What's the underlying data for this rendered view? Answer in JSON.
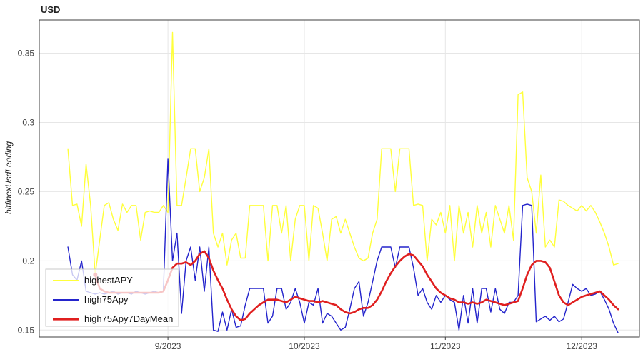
{
  "chart_data": {
    "type": "line",
    "title": "USD",
    "ylabel": "bitfinexUsdLending",
    "xlabel": "",
    "grid": true,
    "legend_position": "bottom-left",
    "ylim": [
      0.145,
      0.374
    ],
    "yticks": [
      0.15,
      0.2,
      0.25,
      0.3,
      0.35
    ],
    "xticks": [
      {
        "label": "9/2023",
        "date": "2023-09-01"
      },
      {
        "label": "10/2023",
        "date": "2023-10-01"
      },
      {
        "label": "11/2023",
        "date": "2023-11-01"
      },
      {
        "label": "12/2023",
        "date": "2023-12-01"
      }
    ],
    "grid_color": "#e6e6e6",
    "frame_color": "#3f3f3f",
    "tick_color": "#444444",
    "dates": [
      "2023-08-10",
      "2023-08-11",
      "2023-08-12",
      "2023-08-13",
      "2023-08-14",
      "2023-08-15",
      "2023-08-16",
      "2023-08-17",
      "2023-08-18",
      "2023-08-19",
      "2023-08-20",
      "2023-08-21",
      "2023-08-22",
      "2023-08-23",
      "2023-08-24",
      "2023-08-25",
      "2023-08-26",
      "2023-08-27",
      "2023-08-28",
      "2023-08-29",
      "2023-08-30",
      "2023-08-31",
      "2023-09-01",
      "2023-09-02",
      "2023-09-03",
      "2023-09-04",
      "2023-09-05",
      "2023-09-06",
      "2023-09-07",
      "2023-09-08",
      "2023-09-09",
      "2023-09-10",
      "2023-09-11",
      "2023-09-12",
      "2023-09-13",
      "2023-09-14",
      "2023-09-15",
      "2023-09-16",
      "2023-09-17",
      "2023-09-18",
      "2023-09-19",
      "2023-09-20",
      "2023-09-21",
      "2023-09-22",
      "2023-09-23",
      "2023-09-24",
      "2023-09-25",
      "2023-09-26",
      "2023-09-27",
      "2023-09-28",
      "2023-09-29",
      "2023-09-30",
      "2023-10-01",
      "2023-10-02",
      "2023-10-03",
      "2023-10-04",
      "2023-10-05",
      "2023-10-06",
      "2023-10-07",
      "2023-10-08",
      "2023-10-09",
      "2023-10-10",
      "2023-10-11",
      "2023-10-12",
      "2023-10-13",
      "2023-10-14",
      "2023-10-15",
      "2023-10-16",
      "2023-10-17",
      "2023-10-18",
      "2023-10-19",
      "2023-10-20",
      "2023-10-21",
      "2023-10-22",
      "2023-10-23",
      "2023-10-24",
      "2023-10-25",
      "2023-10-26",
      "2023-10-27",
      "2023-10-28",
      "2023-10-29",
      "2023-10-30",
      "2023-10-31",
      "2023-11-01",
      "2023-11-02",
      "2023-11-03",
      "2023-11-04",
      "2023-11-05",
      "2023-11-06",
      "2023-11-07",
      "2023-11-08",
      "2023-11-09",
      "2023-11-10",
      "2023-11-11",
      "2023-11-12",
      "2023-11-13",
      "2023-11-14",
      "2023-11-15",
      "2023-11-16",
      "2023-11-17",
      "2023-11-18",
      "2023-11-19",
      "2023-11-20",
      "2023-11-21",
      "2023-11-22",
      "2023-11-23",
      "2023-11-24",
      "2023-11-25",
      "2023-11-26",
      "2023-11-27",
      "2023-11-28",
      "2023-11-29",
      "2023-11-30",
      "2023-12-01",
      "2023-12-02",
      "2023-12-03",
      "2023-12-04",
      "2023-12-05",
      "2023-12-06",
      "2023-12-07",
      "2023-12-08",
      "2023-12-09"
    ],
    "series": [
      {
        "name": "highestAPY",
        "color": "#ffff3b",
        "width": 1.4,
        "values": [
          0.281,
          0.24,
          0.241,
          0.225,
          0.27,
          0.24,
          0.19,
          0.215,
          0.24,
          0.242,
          0.23,
          0.222,
          0.241,
          0.235,
          0.24,
          0.24,
          0.215,
          0.235,
          0.236,
          0.235,
          0.235,
          0.24,
          0.235,
          0.365,
          0.24,
          0.24,
          0.26,
          0.281,
          0.281,
          0.25,
          0.26,
          0.281,
          0.22,
          0.21,
          0.22,
          0.197,
          0.215,
          0.22,
          0.202,
          0.202,
          0.24,
          0.24,
          0.24,
          0.24,
          0.2,
          0.24,
          0.24,
          0.22,
          0.24,
          0.2,
          0.23,
          0.24,
          0.24,
          0.2,
          0.24,
          0.238,
          0.22,
          0.2,
          0.23,
          0.232,
          0.22,
          0.23,
          0.22,
          0.21,
          0.202,
          0.2,
          0.202,
          0.22,
          0.23,
          0.281,
          0.281,
          0.281,
          0.25,
          0.281,
          0.281,
          0.281,
          0.24,
          0.241,
          0.24,
          0.2,
          0.23,
          0.226,
          0.235,
          0.22,
          0.24,
          0.2,
          0.24,
          0.22,
          0.235,
          0.21,
          0.24,
          0.22,
          0.235,
          0.21,
          0.24,
          0.23,
          0.22,
          0.24,
          0.215,
          0.32,
          0.322,
          0.26,
          0.25,
          0.22,
          0.262,
          0.21,
          0.215,
          0.21,
          0.244,
          0.243,
          0.24,
          0.238,
          0.236,
          0.24,
          0.236,
          0.24,
          0.235,
          0.228,
          0.22,
          0.21,
          0.197,
          0.198
        ]
      },
      {
        "name": "high75Apy",
        "color": "#2424cc",
        "width": 1.4,
        "values": [
          0.21,
          0.19,
          0.186,
          0.2,
          0.178,
          0.177,
          0.176,
          0.177,
          0.176,
          0.177,
          0.178,
          0.176,
          0.177,
          0.177,
          0.176,
          0.178,
          0.177,
          0.176,
          0.177,
          0.178,
          0.177,
          0.178,
          0.274,
          0.2,
          0.22,
          0.162,
          0.2,
          0.21,
          0.186,
          0.21,
          0.178,
          0.21,
          0.15,
          0.149,
          0.163,
          0.15,
          0.165,
          0.152,
          0.153,
          0.168,
          0.18,
          0.18,
          0.18,
          0.18,
          0.155,
          0.16,
          0.18,
          0.18,
          0.165,
          0.17,
          0.18,
          0.17,
          0.155,
          0.17,
          0.168,
          0.18,
          0.155,
          0.162,
          0.16,
          0.155,
          0.15,
          0.152,
          0.165,
          0.18,
          0.185,
          0.16,
          0.17,
          0.185,
          0.2,
          0.21,
          0.21,
          0.21,
          0.195,
          0.21,
          0.21,
          0.21,
          0.195,
          0.175,
          0.18,
          0.17,
          0.165,
          0.175,
          0.17,
          0.175,
          0.172,
          0.17,
          0.15,
          0.175,
          0.155,
          0.18,
          0.155,
          0.18,
          0.18,
          0.163,
          0.18,
          0.165,
          0.162,
          0.17,
          0.17,
          0.175,
          0.24,
          0.241,
          0.24,
          0.156,
          0.158,
          0.16,
          0.157,
          0.16,
          0.156,
          0.158,
          0.17,
          0.183,
          0.18,
          0.178,
          0.18,
          0.175,
          0.176,
          0.178,
          0.172,
          0.165,
          0.155,
          0.148
        ]
      },
      {
        "name": "high75Apy7DayMean",
        "color": "#e01f1f",
        "width": 2.6,
        "start_marker": true,
        "values": [
          null,
          null,
          null,
          null,
          null,
          null,
          0.19,
          0.18,
          0.178,
          0.177,
          0.177,
          0.177,
          0.177,
          0.177,
          0.177,
          0.177,
          0.177,
          0.177,
          0.177,
          0.177,
          0.177,
          0.178,
          0.186,
          0.195,
          0.198,
          0.198,
          0.199,
          0.197,
          0.2,
          0.205,
          0.207,
          0.202,
          0.193,
          0.186,
          0.18,
          0.172,
          0.165,
          0.16,
          0.157,
          0.158,
          0.162,
          0.165,
          0.168,
          0.17,
          0.172,
          0.172,
          0.172,
          0.171,
          0.17,
          0.172,
          0.174,
          0.173,
          0.172,
          0.171,
          0.171,
          0.17,
          0.171,
          0.17,
          0.169,
          0.168,
          0.165,
          0.163,
          0.162,
          0.163,
          0.165,
          0.166,
          0.166,
          0.168,
          0.172,
          0.178,
          0.185,
          0.191,
          0.196,
          0.2,
          0.203,
          0.205,
          0.204,
          0.2,
          0.196,
          0.19,
          0.185,
          0.18,
          0.177,
          0.175,
          0.173,
          0.172,
          0.17,
          0.17,
          0.169,
          0.17,
          0.169,
          0.17,
          0.172,
          0.171,
          0.17,
          0.169,
          0.168,
          0.169,
          0.17,
          0.171,
          0.18,
          0.19,
          0.197,
          0.2,
          0.2,
          0.199,
          0.195,
          0.185,
          0.175,
          0.17,
          0.168,
          0.17,
          0.172,
          0.174,
          0.175,
          0.176,
          0.177,
          0.178,
          0.175,
          0.172,
          0.168,
          0.165
        ]
      }
    ]
  }
}
